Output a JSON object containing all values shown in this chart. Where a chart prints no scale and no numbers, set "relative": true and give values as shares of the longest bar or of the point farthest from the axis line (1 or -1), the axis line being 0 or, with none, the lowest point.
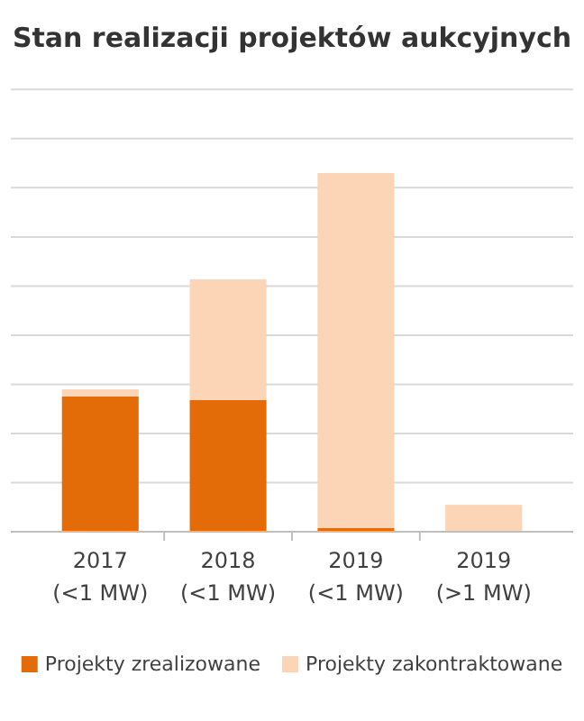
{
  "chart_data": {
    "type": "bar",
    "title": "Stan realizacji projektów aukcyjnych",
    "categories": [
      "2017\n(<1 MW)",
      "2018\n(<1 MW)",
      "2019\n(<1 MW)",
      "2019\n(>1 MW)"
    ],
    "stacked": true,
    "relative": true,
    "grid": "y",
    "legend": "bottom",
    "series": [
      {
        "name": "Projekty zrealizowane",
        "color": "#e36c09",
        "values": [
          0.377,
          0.367,
          0.01,
          0
        ]
      },
      {
        "name": "Projekty zakontraktowane",
        "color": "#fbd5b5",
        "values": [
          0.02,
          0.337,
          0.99,
          0.075
        ]
      }
    ]
  }
}
